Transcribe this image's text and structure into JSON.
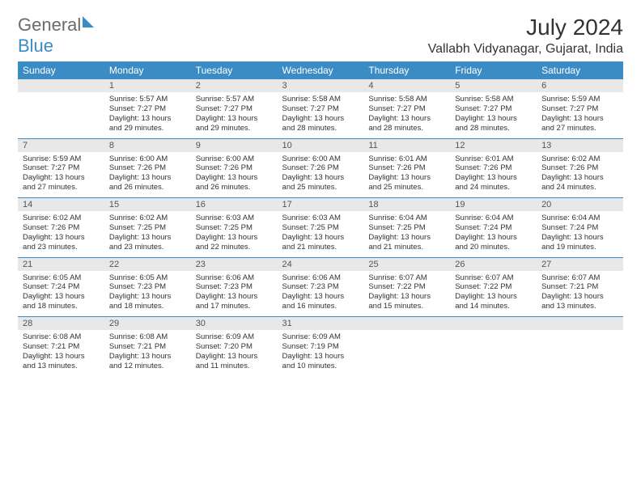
{
  "logo": {
    "text1": "General",
    "text2": "Blue"
  },
  "title": "July 2024",
  "location": "Vallabh Vidyanagar, Gujarat, India",
  "day_headers": [
    "Sunday",
    "Monday",
    "Tuesday",
    "Wednesday",
    "Thursday",
    "Friday",
    "Saturday"
  ],
  "colors": {
    "header_bg": "#3b8cc4",
    "header_fg": "#ffffff",
    "daynum_bg": "#e8e8e8",
    "rule": "#3b8cc4"
  },
  "weeks": [
    [
      null,
      {
        "n": "1",
        "sr": "5:57 AM",
        "ss": "7:27 PM",
        "dl": "13 hours and 29 minutes."
      },
      {
        "n": "2",
        "sr": "5:57 AM",
        "ss": "7:27 PM",
        "dl": "13 hours and 29 minutes."
      },
      {
        "n": "3",
        "sr": "5:58 AM",
        "ss": "7:27 PM",
        "dl": "13 hours and 28 minutes."
      },
      {
        "n": "4",
        "sr": "5:58 AM",
        "ss": "7:27 PM",
        "dl": "13 hours and 28 minutes."
      },
      {
        "n": "5",
        "sr": "5:58 AM",
        "ss": "7:27 PM",
        "dl": "13 hours and 28 minutes."
      },
      {
        "n": "6",
        "sr": "5:59 AM",
        "ss": "7:27 PM",
        "dl": "13 hours and 27 minutes."
      }
    ],
    [
      {
        "n": "7",
        "sr": "5:59 AM",
        "ss": "7:27 PM",
        "dl": "13 hours and 27 minutes."
      },
      {
        "n": "8",
        "sr": "6:00 AM",
        "ss": "7:26 PM",
        "dl": "13 hours and 26 minutes."
      },
      {
        "n": "9",
        "sr": "6:00 AM",
        "ss": "7:26 PM",
        "dl": "13 hours and 26 minutes."
      },
      {
        "n": "10",
        "sr": "6:00 AM",
        "ss": "7:26 PM",
        "dl": "13 hours and 25 minutes."
      },
      {
        "n": "11",
        "sr": "6:01 AM",
        "ss": "7:26 PM",
        "dl": "13 hours and 25 minutes."
      },
      {
        "n": "12",
        "sr": "6:01 AM",
        "ss": "7:26 PM",
        "dl": "13 hours and 24 minutes."
      },
      {
        "n": "13",
        "sr": "6:02 AM",
        "ss": "7:26 PM",
        "dl": "13 hours and 24 minutes."
      }
    ],
    [
      {
        "n": "14",
        "sr": "6:02 AM",
        "ss": "7:26 PM",
        "dl": "13 hours and 23 minutes."
      },
      {
        "n": "15",
        "sr": "6:02 AM",
        "ss": "7:25 PM",
        "dl": "13 hours and 23 minutes."
      },
      {
        "n": "16",
        "sr": "6:03 AM",
        "ss": "7:25 PM",
        "dl": "13 hours and 22 minutes."
      },
      {
        "n": "17",
        "sr": "6:03 AM",
        "ss": "7:25 PM",
        "dl": "13 hours and 21 minutes."
      },
      {
        "n": "18",
        "sr": "6:04 AM",
        "ss": "7:25 PM",
        "dl": "13 hours and 21 minutes."
      },
      {
        "n": "19",
        "sr": "6:04 AM",
        "ss": "7:24 PM",
        "dl": "13 hours and 20 minutes."
      },
      {
        "n": "20",
        "sr": "6:04 AM",
        "ss": "7:24 PM",
        "dl": "13 hours and 19 minutes."
      }
    ],
    [
      {
        "n": "21",
        "sr": "6:05 AM",
        "ss": "7:24 PM",
        "dl": "13 hours and 18 minutes."
      },
      {
        "n": "22",
        "sr": "6:05 AM",
        "ss": "7:23 PM",
        "dl": "13 hours and 18 minutes."
      },
      {
        "n": "23",
        "sr": "6:06 AM",
        "ss": "7:23 PM",
        "dl": "13 hours and 17 minutes."
      },
      {
        "n": "24",
        "sr": "6:06 AM",
        "ss": "7:23 PM",
        "dl": "13 hours and 16 minutes."
      },
      {
        "n": "25",
        "sr": "6:07 AM",
        "ss": "7:22 PM",
        "dl": "13 hours and 15 minutes."
      },
      {
        "n": "26",
        "sr": "6:07 AM",
        "ss": "7:22 PM",
        "dl": "13 hours and 14 minutes."
      },
      {
        "n": "27",
        "sr": "6:07 AM",
        "ss": "7:21 PM",
        "dl": "13 hours and 13 minutes."
      }
    ],
    [
      {
        "n": "28",
        "sr": "6:08 AM",
        "ss": "7:21 PM",
        "dl": "13 hours and 13 minutes."
      },
      {
        "n": "29",
        "sr": "6:08 AM",
        "ss": "7:21 PM",
        "dl": "13 hours and 12 minutes."
      },
      {
        "n": "30",
        "sr": "6:09 AM",
        "ss": "7:20 PM",
        "dl": "13 hours and 11 minutes."
      },
      {
        "n": "31",
        "sr": "6:09 AM",
        "ss": "7:19 PM",
        "dl": "13 hours and 10 minutes."
      },
      null,
      null,
      null
    ]
  ],
  "labels": {
    "sunrise": "Sunrise: ",
    "sunset": "Sunset: ",
    "daylight": "Daylight: "
  }
}
